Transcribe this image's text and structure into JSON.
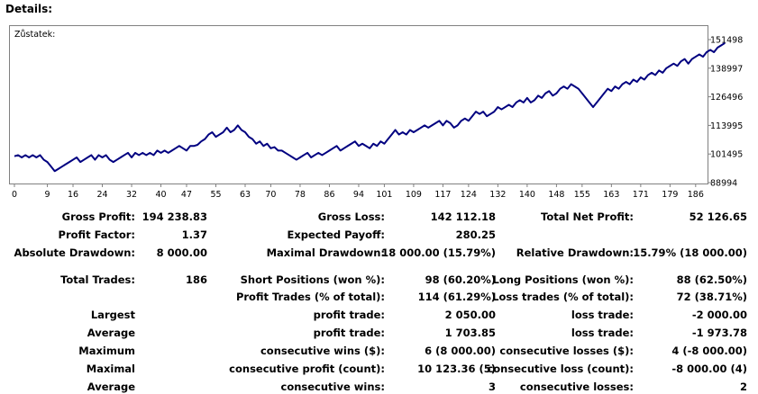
{
  "header": {
    "title": "Details:"
  },
  "chart_data": {
    "type": "line",
    "title": "Zůstatek:",
    "xlabel": "",
    "ylabel": "",
    "x_ticks": [
      0,
      9,
      16,
      24,
      32,
      40,
      47,
      55,
      63,
      70,
      78,
      86,
      94,
      101,
      109,
      117,
      124,
      132,
      140,
      148,
      155,
      163,
      171,
      179,
      186
    ],
    "y_ticks": [
      "88994",
      "101495",
      "113995",
      "126496",
      "138997",
      "151498"
    ],
    "ylim": [
      88994,
      151498
    ],
    "xlim": [
      0,
      189
    ],
    "grid": false,
    "line_color": "#000080",
    "series": [
      {
        "values": [
          100500,
          101000,
          100000,
          101000,
          100000,
          101000,
          100000,
          101000,
          99000,
          98000,
          96000,
          94000,
          95000,
          96000,
          97000,
          98000,
          99000,
          100000,
          98000,
          99000,
          100000,
          101000,
          99000,
          101000,
          100000,
          101000,
          99000,
          98000,
          99000,
          100000,
          101000,
          102000,
          100000,
          102000,
          101000,
          102000,
          101000,
          102000,
          101000,
          103000,
          102000,
          103000,
          102000,
          103000,
          104000,
          105000,
          104000,
          103000,
          105000,
          105000,
          105500,
          107000,
          108000,
          110000,
          111000,
          109000,
          110000,
          111000,
          113000,
          111000,
          112000,
          114000,
          112000,
          111000,
          109000,
          108000,
          106000,
          107000,
          105000,
          106000,
          104000,
          104500,
          103000,
          103000,
          102000,
          101000,
          100000,
          99000,
          100000,
          101000,
          102000,
          100000,
          101000,
          102000,
          101000,
          102000,
          103000,
          104000,
          105000,
          103000,
          104000,
          105000,
          106000,
          107000,
          105000,
          106000,
          105000,
          104000,
          106000,
          105000,
          107000,
          106000,
          108000,
          110000,
          112000,
          110000,
          111000,
          110000,
          112000,
          111000,
          112000,
          113000,
          114000,
          113000,
          114000,
          115000,
          116000,
          114000,
          116000,
          115000,
          113000,
          114000,
          116000,
          117000,
          116000,
          118000,
          120000,
          119000,
          120000,
          118000,
          119000,
          120000,
          122000,
          121000,
          122000,
          123000,
          122000,
          124000,
          125000,
          124000,
          126000,
          124000,
          125000,
          127000,
          126000,
          128000,
          129000,
          127000,
          128000,
          130000,
          131000,
          130000,
          132000,
          131000,
          130000,
          128000,
          126000,
          124000,
          122000,
          124000,
          126000,
          128000,
          130000,
          129000,
          131000,
          130000,
          132000,
          133000,
          132000,
          134000,
          133000,
          135000,
          134000,
          136000,
          137000,
          136000,
          138000,
          137000,
          139000,
          140000,
          141000,
          140000,
          142000,
          143000,
          141000,
          143000,
          144000,
          145000,
          144000,
          146000,
          147000,
          146000,
          148000,
          149000,
          150000
        ]
      }
    ]
  },
  "stats": {
    "gross_profit_label": "Gross Profit:",
    "gross_profit": "194 238.83",
    "gross_loss_label": "Gross Loss:",
    "gross_loss": "142 112.18",
    "total_net_profit_label": "Total Net Profit:",
    "total_net_profit": "52 126.65",
    "profit_factor_label": "Profit Factor:",
    "profit_factor": "1.37",
    "expected_payoff_label": "Expected Payoff:",
    "expected_payoff": "280.25",
    "absolute_drawdown_label": "Absolute Drawdown:",
    "absolute_drawdown": "8 000.00",
    "maximal_drawdown_label": "Maximal Drawdown:",
    "maximal_drawdown": "18 000.00 (15.79%)",
    "relative_drawdown_label": "Relative Drawdown:",
    "relative_drawdown": "15.79% (18 000.00)",
    "total_trades_label": "Total Trades:",
    "total_trades": "186",
    "short_positions_label": "Short Positions (won %):",
    "short_positions": "98 (60.20%)",
    "long_positions_label": "Long Positions (won %):",
    "long_positions": "88 (62.50%)",
    "profit_trades_label": "Profit Trades (% of total):",
    "profit_trades": "114 (61.29%)",
    "loss_trades_label": "Loss trades (% of total):",
    "loss_trades": "72 (38.71%)",
    "largest_label": "Largest",
    "largest_profit_label": "profit trade:",
    "largest_profit": "2 050.00",
    "largest_loss_label": "loss trade:",
    "largest_loss": "-2 000.00",
    "average_label": "Average",
    "average_profit_label": "profit trade:",
    "average_profit": "1 703.85",
    "average_loss_label": "loss trade:",
    "average_loss": "-1 973.78",
    "maximum_label": "Maximum",
    "max_cons_wins_label": "consecutive wins ($):",
    "max_cons_wins": "6 (8 000.00)",
    "max_cons_losses_label": "consecutive losses ($):",
    "max_cons_losses": "4 (-8 000.00)",
    "maximal_label": "Maximal",
    "maximal_cons_profit_label": "consecutive profit (count):",
    "maximal_cons_profit": "10 123.36 (5)",
    "maximal_cons_loss_label": "consecutive loss (count):",
    "maximal_cons_loss": "-8 000.00 (4)",
    "average2_label": "Average",
    "avg_cons_wins_label": "consecutive wins:",
    "avg_cons_wins": "3",
    "avg_cons_losses_label": "consecutive losses:",
    "avg_cons_losses": "2"
  }
}
